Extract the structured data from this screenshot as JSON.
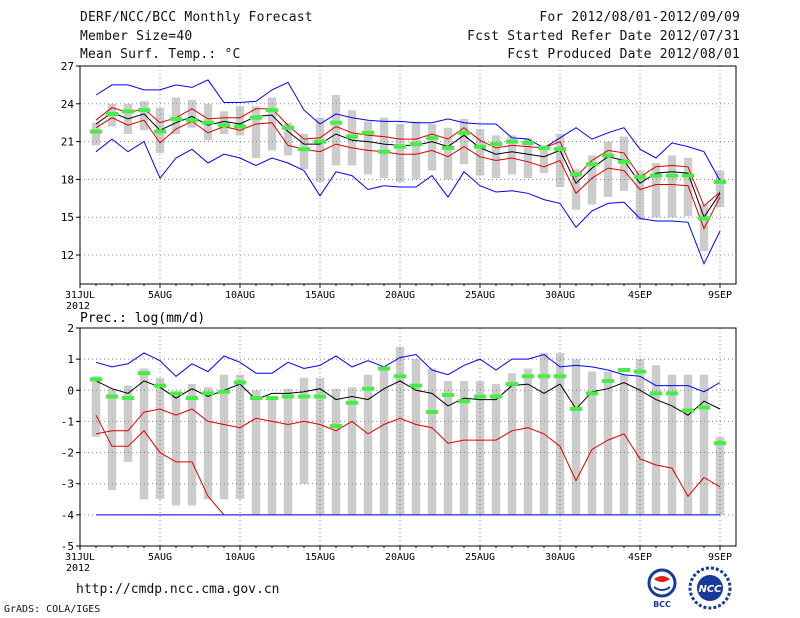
{
  "header": {
    "title": "DERF/NCC/BCC Monthly Forecast",
    "member_size": "Member Size=40",
    "variable": "Mean Surf. Temp.: °C",
    "period": "For 2012/08/01-2012/09/09",
    "started": "Fcst Started Refer Date 2012/07/31",
    "produced": "Fcst Produced Date 2012/08/01"
  },
  "footer": {
    "url": "http://cmdp.ncc.cma.gov.cn",
    "credit": "GrADS: COLA/IGES",
    "logo_left_text": "BCC",
    "logo_right_text": "NCC"
  },
  "colors": {
    "max_line": "#0000ff",
    "min_line": "#0000ff",
    "ensemble_mean": "#000000",
    "spread_line": "#dd0000",
    "box": "#cccccc",
    "marker": "#44ee44",
    "grid": "#888888"
  },
  "chart_data": [
    {
      "type": "line",
      "title": "Mean Surf. Temp.: °C",
      "x_tick_labels": [
        "31JUL\n2012",
        "5AUG",
        "10AUG",
        "15AUG",
        "20AUG",
        "25AUG",
        "30AUG",
        "4SEP",
        "9SEP"
      ],
      "x_tick_days": [
        0,
        5,
        10,
        15,
        20,
        25,
        30,
        35,
        40
      ],
      "y_ticks": [
        12,
        15,
        18,
        21,
        24,
        27
      ],
      "ylim": [
        9.7,
        27
      ],
      "days": [
        1,
        2,
        3,
        4,
        5,
        6,
        7,
        8,
        9,
        10,
        11,
        12,
        13,
        14,
        15,
        16,
        17,
        18,
        19,
        20,
        21,
        22,
        23,
        24,
        25,
        26,
        27,
        28,
        29,
        30,
        31,
        32,
        33,
        34,
        35,
        36,
        37,
        38,
        39,
        40
      ],
      "series": [
        {
          "name": "max",
          "values": [
            24.7,
            25.5,
            25.5,
            25.1,
            25.1,
            25.5,
            25.3,
            25.9,
            24.1,
            24.1,
            24.2,
            25.1,
            25.7,
            23.5,
            22.4,
            23.2,
            22.9,
            22.7,
            22.6,
            22.6,
            22.5,
            22.5,
            22.8,
            22.5,
            22.4,
            22.4,
            21.3,
            21.2,
            20.5,
            21.3,
            22.1,
            21.2,
            21.7,
            22.1,
            20.4,
            19.7,
            20.9,
            20.6,
            20.2,
            17.9
          ]
        },
        {
          "name": "upper",
          "values": [
            22.7,
            23.7,
            23.3,
            23.6,
            22.5,
            22.9,
            23.6,
            22.8,
            22.9,
            22.9,
            23.6,
            23.6,
            22.3,
            21.2,
            21.3,
            22.2,
            21.7,
            21.5,
            21.4,
            21.2,
            21.2,
            21.6,
            21.2,
            22.1,
            21.1,
            20.5,
            20.7,
            20.6,
            20.5,
            21.0,
            18.2,
            19.5,
            20.3,
            20.1,
            18.2,
            19.0,
            19.1,
            19.0,
            15.9,
            17.0
          ]
        },
        {
          "name": "mean",
          "values": [
            22.4,
            23.3,
            22.8,
            23.2,
            21.9,
            22.5,
            23.0,
            22.3,
            22.6,
            22.4,
            23.0,
            23.1,
            21.8,
            20.8,
            20.8,
            21.6,
            21.1,
            21.0,
            20.8,
            20.7,
            20.7,
            21.0,
            20.6,
            21.5,
            20.5,
            20.0,
            20.2,
            20.0,
            19.8,
            20.3,
            17.7,
            18.9,
            19.8,
            19.5,
            17.7,
            18.5,
            18.6,
            18.5,
            15.0,
            16.9
          ]
        },
        {
          "name": "lower",
          "values": [
            22.1,
            22.9,
            22.3,
            22.7,
            20.9,
            22.0,
            22.6,
            21.7,
            22.2,
            21.9,
            22.4,
            22.5,
            20.7,
            20.4,
            20.2,
            20.8,
            20.5,
            20.3,
            20.2,
            20.0,
            20.0,
            20.3,
            19.8,
            20.6,
            19.8,
            19.5,
            19.7,
            19.4,
            19.0,
            19.5,
            16.9,
            18.1,
            18.9,
            18.7,
            17.2,
            17.6,
            17.6,
            17.5,
            14.1,
            16.6
          ]
        },
        {
          "name": "min",
          "values": [
            20.2,
            21.2,
            20.2,
            21.0,
            18.1,
            19.7,
            20.4,
            19.3,
            20.0,
            19.7,
            19.1,
            19.7,
            19.3,
            18.7,
            16.7,
            18.6,
            18.3,
            17.2,
            17.5,
            17.4,
            17.4,
            18.3,
            16.6,
            18.6,
            17.5,
            17.0,
            17.1,
            16.9,
            16.4,
            16.1,
            14.2,
            15.5,
            16.1,
            16.2,
            14.9,
            14.7,
            14.7,
            14.6,
            11.3,
            13.9
          ]
        }
      ],
      "boxes_low": [
        20.7,
        22.2,
        21.6,
        21.9,
        20.1,
        21.6,
        22.1,
        21.1,
        21.6,
        21.5,
        19.7,
        20.3,
        19.9,
        18.8,
        17.8,
        19.1,
        19.1,
        18.4,
        18.1,
        17.8,
        18.0,
        18.7,
        18.0,
        19.2,
        18.3,
        18.1,
        18.4,
        18.1,
        18.5,
        17.4,
        15.6,
        16.0,
        16.6,
        17.1,
        14.8,
        15.0,
        15.0,
        15.1,
        12.3,
        15.8
      ],
      "boxes_high": [
        22.5,
        24.0,
        24.0,
        24.2,
        23.7,
        24.5,
        24.3,
        24.0,
        23.4,
        23.8,
        23.8,
        24.5,
        22.5,
        21.6,
        22.9,
        24.7,
        23.5,
        22.6,
        22.9,
        22.4,
        22.6,
        22.4,
        22.1,
        22.8,
        22.0,
        21.5,
        21.5,
        21.3,
        20.7,
        21.6,
        18.8,
        19.9,
        21.0,
        21.4,
        18.7,
        19.3,
        19.9,
        19.7,
        16.0,
        18.7
      ],
      "observed_markers": [
        21.8,
        23.2,
        23.4,
        23.5,
        21.8,
        22.8,
        22.7,
        22.5,
        22.3,
        22.2,
        22.9,
        23.5,
        22.1,
        20.4,
        21.0,
        22.5,
        21.4,
        21.7,
        20.2,
        20.6,
        20.8,
        21.3,
        20.5,
        21.7,
        20.6,
        20.8,
        21.0,
        20.9,
        20.5,
        20.4,
        18.4,
        19.2,
        19.9,
        19.4,
        18.2,
        18.3,
        18.3,
        18.3,
        14.9,
        17.8
      ]
    },
    {
      "type": "line",
      "title": "Prec.: log(mm/d)",
      "x_tick_labels": [
        "31JUL\n2012",
        "5AUG",
        "10AUG",
        "15AUG",
        "20AUG",
        "25AUG",
        "30AUG",
        "4SEP",
        "9SEP"
      ],
      "x_tick_days": [
        0,
        5,
        10,
        15,
        20,
        25,
        30,
        35,
        40
      ],
      "y_ticks": [
        -5,
        -4,
        -3,
        -2,
        -1,
        0,
        1,
        2
      ],
      "ylim": [
        -5,
        2
      ],
      "days": [
        1,
        2,
        3,
        4,
        5,
        6,
        7,
        8,
        9,
        10,
        11,
        12,
        13,
        14,
        15,
        16,
        17,
        18,
        19,
        20,
        21,
        22,
        23,
        24,
        25,
        26,
        27,
        28,
        29,
        30,
        31,
        32,
        33,
        34,
        35,
        36,
        37,
        38,
        39,
        40
      ],
      "series": [
        {
          "name": "max",
          "values": [
            0.9,
            0.75,
            0.85,
            1.2,
            0.95,
            0.45,
            0.85,
            0.6,
            1.1,
            0.9,
            0.55,
            0.55,
            0.9,
            0.7,
            0.8,
            1.1,
            0.75,
            0.95,
            0.75,
            1.05,
            1.15,
            0.65,
            0.5,
            0.8,
            1.0,
            0.65,
            1.0,
            1.0,
            1.15,
            0.75,
            0.8,
            0.75,
            0.65,
            0.5,
            0.45,
            0.15,
            0.15,
            0.15,
            -0.05,
            0.25
          ]
        },
        {
          "name": "mean",
          "values": [
            0.3,
            0.05,
            -0.1,
            0.3,
            0.1,
            -0.25,
            0.05,
            -0.2,
            0.0,
            0.2,
            -0.3,
            -0.1,
            -0.1,
            -0.05,
            0.05,
            -0.3,
            -0.2,
            -0.3,
            0.05,
            0.3,
            0.0,
            -0.1,
            -0.5,
            -0.25,
            -0.3,
            -0.3,
            0.15,
            0.2,
            -0.1,
            0.2,
            -0.6,
            -0.05,
            0.05,
            0.25,
            0.0,
            -0.3,
            -0.5,
            -0.8,
            -0.35,
            -0.6
          ]
        },
        {
          "name": "lower",
          "values": [
            -0.8,
            -1.8,
            -1.8,
            -1.3,
            -2.0,
            -2.3,
            -2.3,
            -3.4,
            -4.0,
            null,
            null,
            null,
            null,
            null,
            null,
            null,
            null,
            null,
            null,
            null,
            null,
            null,
            null,
            null,
            null,
            null,
            null,
            null,
            null,
            null,
            null,
            null,
            null,
            null,
            null,
            null,
            null,
            null,
            null,
            null
          ]
        },
        {
          "name": "spread",
          "values": [
            -1.4,
            -1.3,
            -1.3,
            -0.7,
            -0.6,
            -0.8,
            -0.6,
            -1.0,
            -1.1,
            -1.2,
            -0.9,
            -1.0,
            -1.1,
            -1.0,
            -1.1,
            -1.3,
            -1.0,
            -1.4,
            -1.1,
            -0.9,
            -1.1,
            -1.2,
            -1.7,
            -1.6,
            -1.6,
            -1.6,
            -1.3,
            -1.2,
            -1.4,
            -1.8,
            -2.9,
            -1.9,
            -1.6,
            -1.4,
            -2.2,
            -2.4,
            -2.5,
            -3.4,
            -2.8,
            -3.1
          ]
        },
        {
          "name": "min",
          "values": [
            -4,
            -4,
            -4,
            -4,
            -4,
            -4,
            -4,
            -4,
            -4,
            -4,
            -4,
            -4,
            -4,
            -4,
            -4,
            -4,
            -4,
            -4,
            -4,
            -4,
            -4,
            -4,
            -4,
            -4,
            -4,
            -4,
            -4,
            -4,
            -4,
            -4,
            -4,
            -4,
            -4,
            -4,
            -4,
            -4,
            -4,
            -4,
            -4,
            -4
          ]
        }
      ],
      "boxes_low": [
        -1.5,
        -3.2,
        -2.3,
        -3.5,
        -3.5,
        -3.7,
        -3.7,
        -3.5,
        -3.5,
        -3.5,
        -4.0,
        -4.0,
        -4.0,
        -3.0,
        -4.0,
        -4.0,
        -4.0,
        -4.0,
        -4.0,
        -4.0,
        -4.0,
        -4.0,
        -4.0,
        -4.0,
        -4.0,
        -4.0,
        -4.0,
        -4.0,
        -4.0,
        -4.0,
        -4.0,
        -4.0,
        -4.0,
        -4.0,
        -4.0,
        -4.0,
        -4.0,
        -4.0,
        -4.0,
        -4.0
      ],
      "boxes_high": [
        0.45,
        0.05,
        0.15,
        0.7,
        0.4,
        -0.1,
        0.2,
        0.1,
        0.5,
        0.5,
        0.0,
        -0.2,
        0.05,
        0.4,
        0.4,
        0.05,
        0.1,
        0.5,
        0.75,
        1.4,
        1.0,
        0.7,
        0.3,
        0.3,
        0.3,
        0.2,
        0.55,
        0.7,
        1.2,
        1.2,
        1.0,
        0.6,
        0.6,
        0.5,
        1.0,
        0.8,
        0.5,
        0.5,
        0.5,
        -1.5
      ],
      "observed_markers": [
        0.35,
        -0.2,
        -0.25,
        0.55,
        0.15,
        -0.1,
        -0.25,
        -0.1,
        -0.05,
        0.25,
        -0.25,
        -0.25,
        -0.2,
        -0.2,
        -0.2,
        -1.15,
        -0.4,
        0.05,
        0.7,
        0.45,
        0.15,
        -0.7,
        -0.15,
        -0.35,
        -0.2,
        -0.2,
        0.2,
        0.45,
        0.45,
        0.45,
        -0.6,
        -0.1,
        0.3,
        0.65,
        0.6,
        -0.1,
        -0.1,
        -0.65,
        -0.55,
        -1.7
      ]
    }
  ]
}
